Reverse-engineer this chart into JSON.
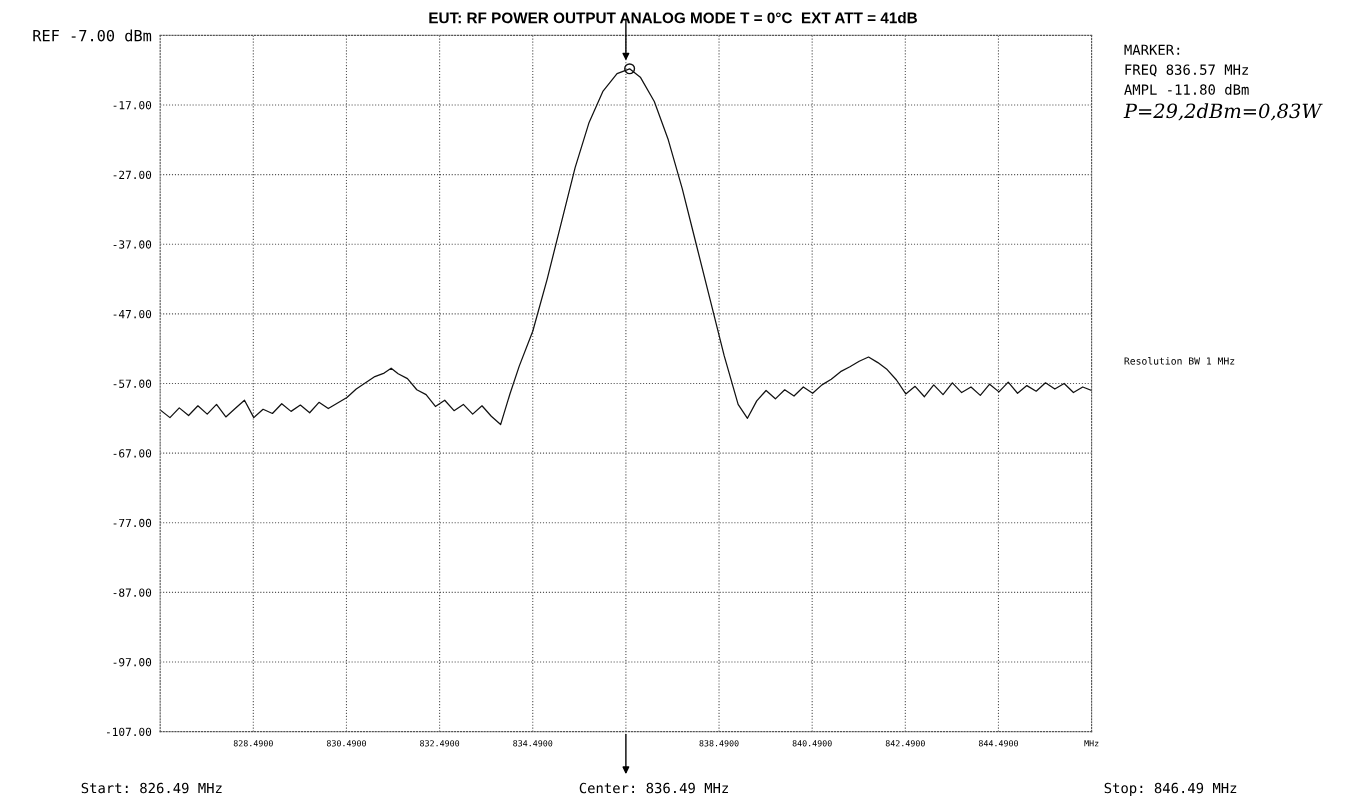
{
  "chart_data": {
    "type": "line",
    "title": "EUT: RF POWER OUTPUT ANALOG MODE T = 0°C  EXT ATT = 41dB",
    "x": [
      826.49,
      826.7,
      826.9,
      827.1,
      827.3,
      827.5,
      827.7,
      827.9,
      828.1,
      828.3,
      828.5,
      828.7,
      828.9,
      829.1,
      829.3,
      829.5,
      829.7,
      829.9,
      830.1,
      830.3,
      830.5,
      830.7,
      830.9,
      831.1,
      831.3,
      831.45,
      831.6,
      831.8,
      832.0,
      832.2,
      832.4,
      832.6,
      832.8,
      833.0,
      833.2,
      833.4,
      833.6,
      833.8,
      834.0,
      834.2,
      834.49,
      834.8,
      835.1,
      835.4,
      835.7,
      836.0,
      836.3,
      836.57,
      836.8,
      837.1,
      837.4,
      837.7,
      838.0,
      838.3,
      838.6,
      838.9,
      839.1,
      839.3,
      839.5,
      839.7,
      839.9,
      840.1,
      840.3,
      840.5,
      840.7,
      840.9,
      841.1,
      841.3,
      841.5,
      841.7,
      841.9,
      842.1,
      842.3,
      842.5,
      842.7,
      842.9,
      843.1,
      843.3,
      843.5,
      843.7,
      843.9,
      844.1,
      844.3,
      844.5,
      844.7,
      844.9,
      845.1,
      845.3,
      845.5,
      845.7,
      845.9,
      846.1,
      846.3,
      846.49
    ],
    "series": [
      {
        "color": "#111111",
        "values": [
          -60.8,
          -61.9,
          -60.5,
          -61.6,
          -60.2,
          -61.4,
          -60.0,
          -61.8,
          -60.6,
          -59.4,
          -61.9,
          -60.7,
          -61.3,
          -59.9,
          -61.0,
          -60.1,
          -61.2,
          -59.7,
          -60.6,
          -59.8,
          -59.0,
          -57.8,
          -56.9,
          -56.0,
          -55.5,
          -54.8,
          -55.6,
          -56.3,
          -57.9,
          -58.6,
          -60.3,
          -59.4,
          -60.9,
          -60.0,
          -61.4,
          -60.2,
          -61.7,
          -62.9,
          -58.5,
          -54.5,
          -49.5,
          -42.0,
          -34.0,
          -26.0,
          -19.5,
          -15.0,
          -12.5,
          -11.8,
          -13.0,
          -16.5,
          -22.0,
          -29.0,
          -37.0,
          -45.0,
          -53.0,
          -60.0,
          -62.0,
          -59.5,
          -58.0,
          -59.2,
          -57.9,
          -58.8,
          -57.5,
          -58.4,
          -57.2,
          -56.4,
          -55.3,
          -54.6,
          -53.8,
          -53.2,
          -54.0,
          -55.0,
          -56.5,
          -58.5,
          -57.4,
          -58.9,
          -57.2,
          -58.6,
          -56.9,
          -58.3,
          -57.5,
          -58.7,
          -57.1,
          -58.2,
          -56.8,
          -58.4,
          -57.3,
          -58.1,
          -56.9,
          -57.8,
          -57.0,
          -58.3,
          -57.5,
          -58.0
        ]
      },
      {
        "type": "scatter",
        "color": "#111111",
        "marker": "circle",
        "x": [
          836.57
        ],
        "values": [
          -11.8
        ]
      }
    ],
    "xlim": [
      826.49,
      846.49
    ],
    "xticks": [
      {
        "value": 828.49,
        "label": "828.4900"
      },
      {
        "value": 830.49,
        "label": "830.4900"
      },
      {
        "value": 832.49,
        "label": "832.4900"
      },
      {
        "value": 834.49,
        "label": "834.4900"
      },
      {
        "value": 836.49,
        "label": null
      },
      {
        "value": 838.49,
        "label": "838.4900"
      },
      {
        "value": 840.49,
        "label": "840.4900"
      },
      {
        "value": 842.49,
        "label": "842.4900"
      },
      {
        "value": 844.49,
        "label": "844.4900"
      },
      {
        "value": 846.49,
        "label": "MHz"
      }
    ],
    "ylim": [
      -107,
      -7
    ],
    "yticks": [
      {
        "value": -7,
        "label": "REF -7.00 dBm"
      },
      {
        "value": -17,
        "label": "-17.00"
      },
      {
        "value": -27,
        "label": "-27.00"
      },
      {
        "value": -37,
        "label": "-37.00"
      },
      {
        "value": -47,
        "label": "-47.00"
      },
      {
        "value": -57,
        "label": "-57.00"
      },
      {
        "value": -67,
        "label": "-67.00"
      },
      {
        "value": -77,
        "label": "-77.00"
      },
      {
        "value": -87,
        "label": "-87.00"
      },
      {
        "value": -97,
        "label": "-97.00"
      },
      {
        "value": -107,
        "label": "-107.00"
      }
    ],
    "grid": true,
    "line_style": "solid",
    "marker": "none",
    "annotations": [
      "MARKER:\nFREQ 836.57 MHz\nAMPL -11.80 dBm",
      "P=29,2dBm=0,83W",
      "Resolution BW 1 MHz",
      "Start: 826.49 MHz",
      "Center: 836.49 MHz",
      "Stop: 846.49 MHz"
    ]
  }
}
